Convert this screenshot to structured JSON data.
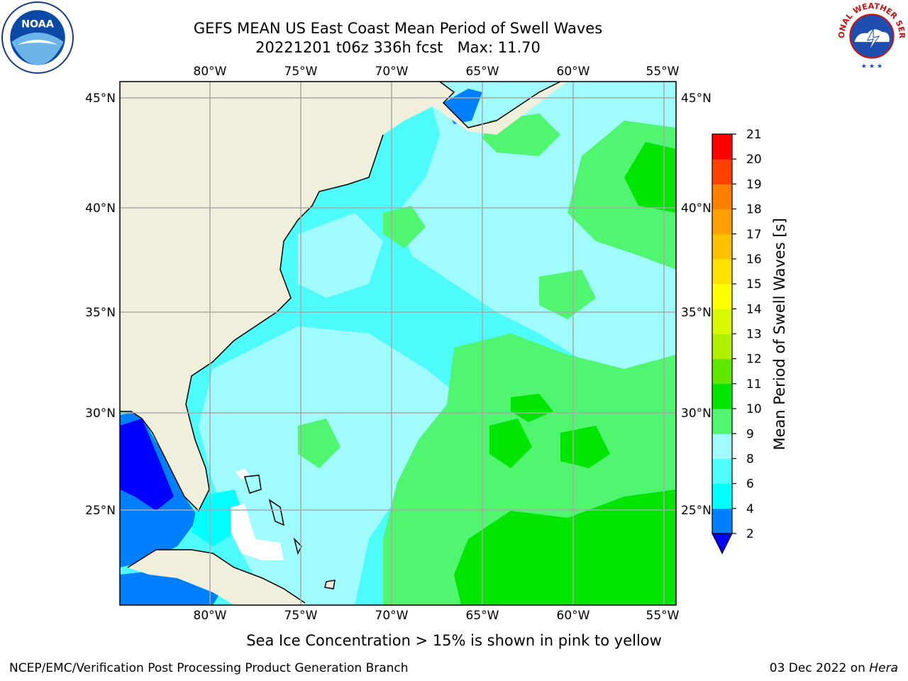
{
  "title_line1": "GEFS MEAN US East Coast Mean Period of Swell Waves",
  "title_line2": "20221201 t06z 336h fcst   Max: 11.70",
  "footnote": "Sea Ice Concentration > 15% is shown in pink to yellow",
  "credit": "NCEP/EMC/Verification Post Processing Product Generation Branch",
  "stamp_date": "03 Dec 2022 on ",
  "stamp_host": "Hera",
  "logos": {
    "left": "NOAA",
    "right": "NATIONAL WEATHER SERVICE"
  },
  "map": {
    "lon_labels": [
      "80°W",
      "75°W",
      "70°W",
      "65°W",
      "60°W",
      "55°W"
    ],
    "lat_labels": [
      "45°N",
      "40°N",
      "35°N",
      "30°N",
      "25°N"
    ],
    "land_color": "#efefdc",
    "ocean_color": "#4dfbfb"
  },
  "colorbar": {
    "label": "Mean Period of Swell Waves [s]",
    "ticks": [
      "2",
      "4",
      "6",
      "8",
      "9",
      "10",
      "11",
      "12",
      "13",
      "14",
      "15",
      "16",
      "17",
      "18",
      "19",
      "20",
      "21"
    ],
    "colors": [
      "#0080ff",
      "#00ffff",
      "#4dffff",
      "#a0fcfc",
      "#50f570",
      "#00e600",
      "#60e800",
      "#b0f000",
      "#d8f800",
      "#ffff00",
      "#ffe000",
      "#ffc000",
      "#ffa000",
      "#ff8000",
      "#ff4000",
      "#ff0000"
    ],
    "extend_color": "#0000ff"
  }
}
